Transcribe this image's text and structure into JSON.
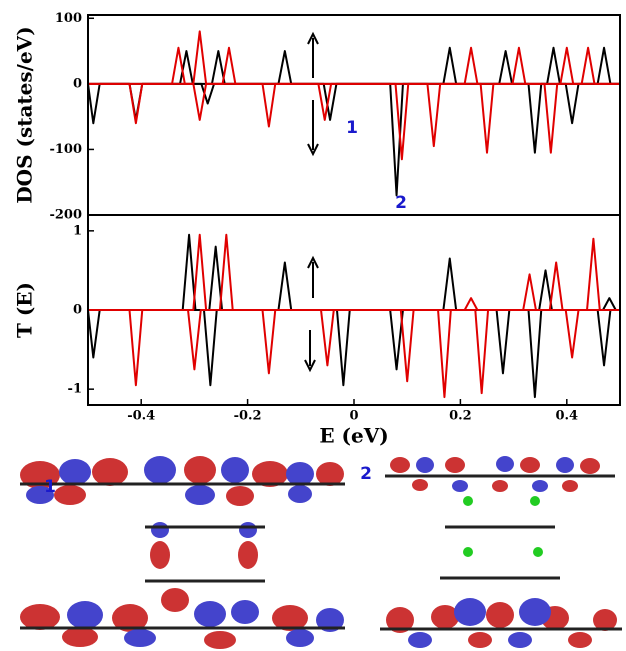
{
  "chart_data": [
    {
      "type": "line",
      "ylabel": "DOS (states/eV)",
      "annotations": [
        "1",
        "2"
      ],
      "xlim": [
        -0.5,
        0.5
      ],
      "ylim": [
        -200,
        105
      ],
      "yticks": [
        100,
        0,
        -100,
        -200
      ],
      "series": [
        {
          "color": "#000000",
          "x": [
            -0.5,
            -0.327,
            -0.315,
            -0.303,
            -0.267,
            -0.255,
            -0.243,
            -0.142,
            -0.13,
            -0.118,
            0.168,
            0.18,
            0.192,
            0.273,
            0.285,
            0.297,
            0.363,
            0.375,
            0.387,
            0.458,
            0.47,
            0.482,
            0.5
          ],
          "values": [
            0,
            0,
            50,
            0,
            0,
            50,
            0,
            0,
            50,
            0,
            0,
            55,
            0,
            0,
            50,
            0,
            0,
            55,
            0,
            0,
            55,
            0,
            0
          ]
        },
        {
          "color": "#000000",
          "x": [
            -0.5,
            -0.49,
            -0.478,
            -0.422,
            -0.41,
            -0.398,
            -0.287,
            -0.275,
            -0.263,
            -0.057,
            -0.045,
            -0.033,
            0.068,
            0.08,
            0.092,
            0.328,
            0.34,
            0.352,
            0.398,
            0.41,
            0.422,
            0.5
          ],
          "values": [
            0,
            -60,
            0,
            0,
            -55,
            0,
            0,
            -30,
            0,
            0,
            -55,
            0,
            0,
            -170,
            0,
            0,
            -105,
            0,
            0,
            -60,
            0,
            0
          ]
        },
        {
          "color": "#e00000",
          "x": [
            -0.5,
            -0.342,
            -0.33,
            -0.318,
            -0.302,
            -0.29,
            -0.278,
            -0.247,
            -0.235,
            -0.223,
            0.208,
            0.22,
            0.232,
            0.298,
            0.31,
            0.322,
            0.388,
            0.4,
            0.412,
            0.428,
            0.44,
            0.452,
            0.5
          ],
          "values": [
            0,
            0,
            55,
            0,
            0,
            80,
            0,
            0,
            55,
            0,
            0,
            55,
            0,
            0,
            55,
            0,
            0,
            55,
            0,
            0,
            55,
            0,
            0
          ]
        },
        {
          "color": "#e00000",
          "x": [
            -0.5,
            -0.422,
            -0.41,
            -0.398,
            -0.302,
            -0.29,
            -0.278,
            -0.172,
            -0.16,
            -0.148,
            -0.067,
            -0.055,
            -0.043,
            0.078,
            0.09,
            0.102,
            0.138,
            0.15,
            0.162,
            0.238,
            0.25,
            0.262,
            0.358,
            0.37,
            0.382,
            0.5
          ],
          "values": [
            0,
            0,
            -60,
            0,
            0,
            -55,
            0,
            0,
            -65,
            0,
            0,
            -55,
            0,
            0,
            -115,
            0,
            0,
            -95,
            0,
            0,
            -105,
            0,
            0,
            -105,
            0,
            0
          ]
        }
      ]
    },
    {
      "type": "line",
      "ylabel": "T (E)",
      "xlabel": "E (eV)",
      "xlim": [
        -0.5,
        0.5
      ],
      "ylim": [
        -1.2,
        1.2
      ],
      "yticks": [
        1,
        0,
        -1
      ],
      "xticks": [
        -0.4,
        -0.2,
        0,
        0.2,
        0.4
      ],
      "series": [
        {
          "color": "#000000",
          "x": [
            -0.5,
            -0.322,
            -0.31,
            -0.298,
            -0.272,
            -0.26,
            -0.248,
            -0.142,
            -0.13,
            -0.118,
            0.168,
            0.18,
            0.192,
            0.348,
            0.36,
            0.372,
            0.468,
            0.48,
            0.492,
            0.5
          ],
          "values": [
            0,
            0,
            0.95,
            0,
            0,
            0.8,
            0,
            0,
            0.6,
            0,
            0,
            0.65,
            0,
            0,
            0.5,
            0,
            0,
            0.15,
            0,
            0
          ]
        },
        {
          "color": "#000000",
          "x": [
            -0.5,
            -0.49,
            -0.478,
            -0.282,
            -0.27,
            -0.258,
            -0.032,
            -0.02,
            -0.008,
            0.068,
            0.08,
            0.092,
            0.268,
            0.28,
            0.292,
            0.328,
            0.34,
            0.352,
            0.458,
            0.47,
            0.482,
            0.5
          ],
          "values": [
            0,
            -0.6,
            0,
            0,
            -0.95,
            0,
            0,
            -0.95,
            0,
            0,
            -0.75,
            0,
            0,
            -0.8,
            0,
            0,
            -1.1,
            0,
            0,
            -0.7,
            0,
            0
          ]
        },
        {
          "color": "#e00000",
          "x": [
            -0.5,
            -0.302,
            -0.29,
            -0.278,
            -0.252,
            -0.24,
            -0.228,
            0.208,
            0.22,
            0.232,
            0.318,
            0.33,
            0.342,
            0.368,
            0.38,
            0.392,
            0.438,
            0.45,
            0.462,
            0.5
          ],
          "values": [
            0,
            0,
            0.95,
            0,
            0,
            0.95,
            0,
            0,
            0.15,
            0,
            0,
            0.45,
            0,
            0,
            0.6,
            0,
            0,
            0.9,
            0,
            0
          ]
        },
        {
          "color": "#e00000",
          "x": [
            -0.5,
            -0.422,
            -0.41,
            -0.398,
            -0.312,
            -0.3,
            -0.288,
            -0.172,
            -0.16,
            -0.148,
            -0.062,
            -0.05,
            -0.038,
            0.088,
            0.1,
            0.112,
            0.158,
            0.17,
            0.182,
            0.228,
            0.24,
            0.252,
            0.398,
            0.41,
            0.422,
            0.5
          ],
          "values": [
            0,
            0,
            -0.95,
            0,
            0,
            -0.75,
            0,
            0,
            -0.8,
            0,
            0,
            -0.7,
            0,
            0,
            -0.9,
            0,
            0,
            -1.1,
            0,
            0,
            -1.05,
            0,
            0,
            -0.6,
            0,
            0
          ]
        }
      ]
    }
  ],
  "figure_panels": {
    "labels": [
      "1",
      "2"
    ]
  }
}
